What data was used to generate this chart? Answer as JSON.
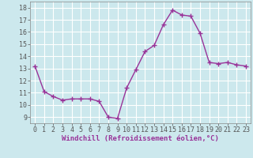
{
  "x": [
    0,
    1,
    2,
    3,
    4,
    5,
    6,
    7,
    8,
    9,
    10,
    11,
    12,
    13,
    14,
    15,
    16,
    17,
    18,
    19,
    20,
    21,
    22,
    23
  ],
  "y": [
    13.2,
    11.1,
    10.7,
    10.4,
    10.5,
    10.5,
    10.5,
    10.3,
    9.0,
    8.9,
    11.4,
    12.9,
    14.4,
    14.9,
    16.6,
    17.8,
    17.4,
    17.3,
    15.9,
    13.5,
    13.4,
    13.5,
    13.3,
    13.2
  ],
  "line_color": "#993399",
  "marker": "+",
  "marker_size": 4,
  "marker_linewidth": 1.0,
  "background_color": "#cce8ed",
  "grid_color": "#ffffff",
  "xlabel": "Windchill (Refroidissement éolien,°C)",
  "xlabel_fontsize": 6.5,
  "tick_label_fontsize": 6,
  "ylim": [
    8.5,
    18.5
  ],
  "yticks": [
    9,
    10,
    11,
    12,
    13,
    14,
    15,
    16,
    17,
    18
  ],
  "xticks": [
    0,
    1,
    2,
    3,
    4,
    5,
    6,
    7,
    8,
    9,
    10,
    11,
    12,
    13,
    14,
    15,
    16,
    17,
    18,
    19,
    20,
    21,
    22,
    23
  ],
  "xlim": [
    -0.5,
    23.5
  ],
  "line_width": 1.0,
  "spine_color": "#888888"
}
